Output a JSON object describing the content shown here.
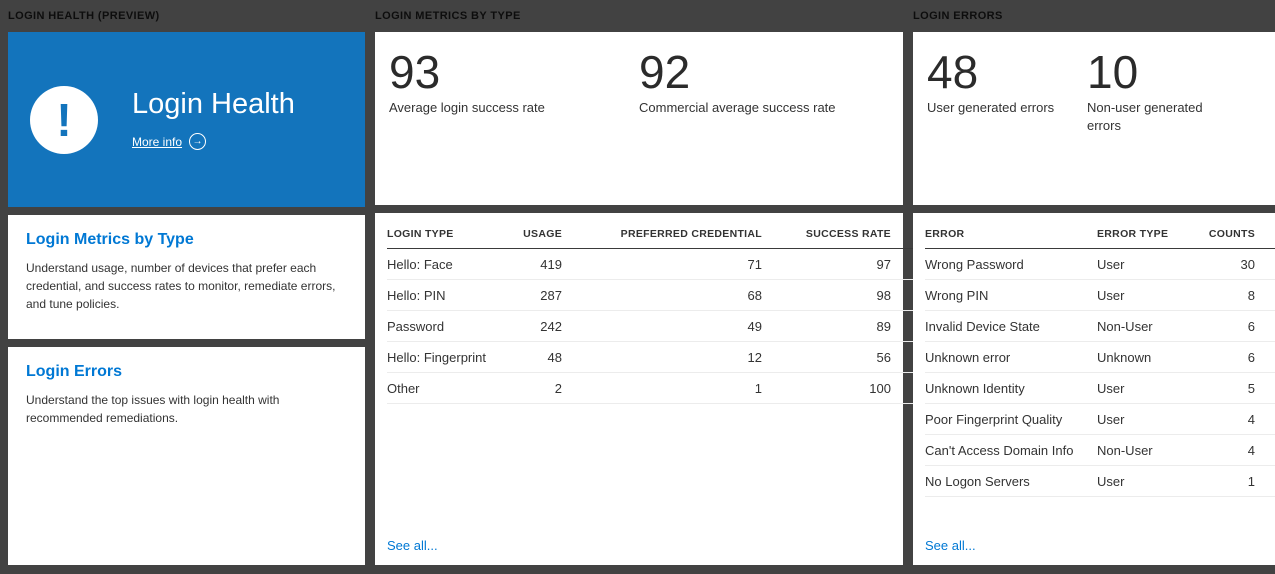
{
  "page": {
    "colors": {
      "tile_blue": "#1374bc",
      "link_blue": "#0078d4",
      "background": "#424242"
    }
  },
  "icons": {
    "alert": "!",
    "arrow_right": "→"
  },
  "columns": {
    "health": {
      "header": "LOGIN HEALTH (PREVIEW)",
      "hero": {
        "title": "Login Health",
        "more_info": "More info"
      },
      "cards": [
        {
          "title": "Login Metrics by Type",
          "description": "Understand usage, number of devices that prefer each credential, and success rates to monitor, remediate errors, and tune policies."
        },
        {
          "title": "Login Errors",
          "description": "Understand the top issues with login health with recommended remediations."
        }
      ]
    },
    "metrics": {
      "header": "LOGIN METRICS BY TYPE",
      "stats": [
        {
          "value": "93",
          "label": "Average login success rate"
        },
        {
          "value": "92",
          "label": "Commercial average success rate"
        }
      ],
      "table": {
        "headers": [
          "LOGIN TYPE",
          "USAGE",
          "PREFERRED CREDENTIAL",
          "SUCCESS RATE"
        ],
        "rows": [
          [
            "Hello: Face",
            "419",
            "71",
            "97"
          ],
          [
            "Hello: PIN",
            "287",
            "68",
            "98"
          ],
          [
            "Password",
            "242",
            "49",
            "89"
          ],
          [
            "Hello: Fingerprint",
            "48",
            "12",
            "56"
          ],
          [
            "Other",
            "2",
            "1",
            "100"
          ]
        ]
      },
      "see_all": "See all..."
    },
    "errors": {
      "header": "LOGIN ERRORS",
      "stats": [
        {
          "value": "48",
          "label": "User generated errors"
        },
        {
          "value": "10",
          "label": "Non-user generated errors"
        }
      ],
      "table": {
        "headers": [
          "ERROR",
          "ERROR TYPE",
          "COUNTS"
        ],
        "rows": [
          [
            "Wrong Password",
            "User",
            "30"
          ],
          [
            "Wrong PIN",
            "User",
            "8"
          ],
          [
            "Invalid Device State",
            "Non-User",
            "6"
          ],
          [
            "Unknown error",
            "Unknown",
            "6"
          ],
          [
            "Unknown Identity",
            "User",
            "5"
          ],
          [
            "Poor Fingerprint Quality",
            "User",
            "4"
          ],
          [
            "Can't Access Domain Info",
            "Non-User",
            "4"
          ],
          [
            "No Logon Servers",
            "User",
            "1"
          ]
        ]
      },
      "see_all": "See all..."
    }
  }
}
